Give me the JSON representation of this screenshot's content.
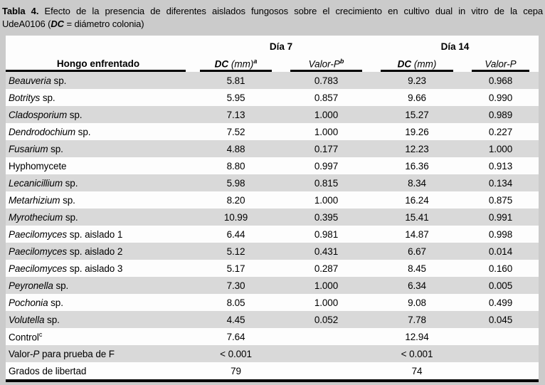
{
  "caption": {
    "label": "Tabla 4.",
    "line1_text": "Efecto de la presencia de diferentes aislados fungosos sobre el crecimiento en cultivo dual in vitro de la cepa",
    "line2_pre": "UdeA0106 (",
    "line2_abbr": "DC",
    "line2_post": " = diámetro colonia)"
  },
  "table": {
    "col1_header": "Hongo enfrentado",
    "group_headers": {
      "day7": "Día 7",
      "day14": "Día 14"
    },
    "subheaders": {
      "dc7": {
        "abbr": "DC",
        "unit": " (mm)",
        "sup": "a"
      },
      "p7": {
        "label": "Valor-P",
        "sup": "b"
      },
      "dc14": {
        "abbr": "DC",
        "unit": " (mm)",
        "sup": ""
      },
      "p14": {
        "label": "Valor-P",
        "sup": ""
      }
    },
    "rows": [
      {
        "pre": "",
        "it": "Beauveria",
        "post": " sp.",
        "sup": "",
        "dc7": "5.81",
        "p7": "0.783",
        "dc14": "9.23",
        "p14": "0.968"
      },
      {
        "pre": "",
        "it": "Botritys",
        "post": " sp.",
        "sup": "",
        "dc7": "5.95",
        "p7": "0.857",
        "dc14": "9.66",
        "p14": "0.990"
      },
      {
        "pre": "",
        "it": "Cladosporium",
        "post": " sp.",
        "sup": "",
        "dc7": "7.13",
        "p7": "1.000",
        "dc14": "15.27",
        "p14": "0.989"
      },
      {
        "pre": "",
        "it": "Dendrodochium",
        "post": " sp.",
        "sup": "",
        "dc7": "7.52",
        "p7": "1.000",
        "dc14": "19.26",
        "p14": "0.227"
      },
      {
        "pre": "",
        "it": "Fusarium",
        "post": " sp.",
        "sup": "",
        "dc7": "4.88",
        "p7": "0.177",
        "dc14": "12.23",
        "p14": "1.000"
      },
      {
        "pre": "Hyphomycete",
        "it": "",
        "post": "",
        "sup": "",
        "dc7": "8.80",
        "p7": "0.997",
        "dc14": "16.36",
        "p14": "0.913"
      },
      {
        "pre": "",
        "it": "Lecanicillium",
        "post": " sp.",
        "sup": "",
        "dc7": "5.98",
        "p7": "0.815",
        "dc14": "8.34",
        "p14": "0.134"
      },
      {
        "pre": "",
        "it": "Metarhizium",
        "post": " sp.",
        "sup": "",
        "dc7": "8.20",
        "p7": "1.000",
        "dc14": "16.24",
        "p14": "0.875"
      },
      {
        "pre": "",
        "it": "Myrothecium",
        "post": " sp.",
        "sup": "",
        "dc7": "10.99",
        "p7": "0.395",
        "dc14": "15.41",
        "p14": "0.991"
      },
      {
        "pre": "",
        "it": "Paecilomyces",
        "post": " sp. aislado 1",
        "sup": "",
        "dc7": "6.44",
        "p7": "0.981",
        "dc14": "14.87",
        "p14": "0.998"
      },
      {
        "pre": "",
        "it": "Paecilomyces",
        "post": " sp. aislado 2",
        "sup": "",
        "dc7": "5.12",
        "p7": "0.431",
        "dc14": "6.67",
        "p14": "0.014"
      },
      {
        "pre": "",
        "it": "Paecilomyces",
        "post": " sp. aislado 3",
        "sup": "",
        "dc7": "5.17",
        "p7": "0.287",
        "dc14": "8.45",
        "p14": "0.160"
      },
      {
        "pre": "",
        "it": "Peyronella",
        "post": " sp.",
        "sup": "",
        "dc7": "7.30",
        "p7": "1.000",
        "dc14": "6.34",
        "p14": "0.005"
      },
      {
        "pre": "",
        "it": "Pochonia",
        "post": " sp.",
        "sup": "",
        "dc7": "8.05",
        "p7": "1.000",
        "dc14": "9.08",
        "p14": "0.499"
      },
      {
        "pre": "",
        "it": "Volutella",
        "post": " sp.",
        "sup": "",
        "dc7": "4.45",
        "p7": "0.052",
        "dc14": "7.78",
        "p14": "0.045"
      },
      {
        "pre": "Control",
        "it": "",
        "post": "",
        "sup": "c",
        "dc7": "7.64",
        "p7": "",
        "dc14": "12.94",
        "p14": ""
      },
      {
        "pre": "Valor-",
        "it": "P",
        "post": " para prueba de F",
        "sup": "",
        "dc7": "< 0.001",
        "p7": "",
        "dc14": "< 0.001",
        "p14": ""
      },
      {
        "pre": "Grados de libertad",
        "it": "",
        "post": "",
        "sup": "",
        "dc7": "79",
        "p7": "",
        "dc14": "74",
        "p14": ""
      }
    ]
  }
}
